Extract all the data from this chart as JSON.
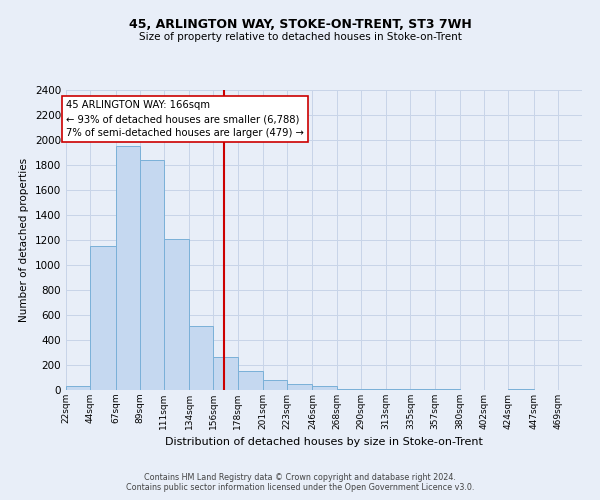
{
  "title1": "45, ARLINGTON WAY, STOKE-ON-TRENT, ST3 7WH",
  "title2": "Size of property relative to detached houses in Stoke-on-Trent",
  "xlabel": "Distribution of detached houses by size in Stoke-on-Trent",
  "ylabel": "Number of detached properties",
  "bar_labels": [
    "22sqm",
    "44sqm",
    "67sqm",
    "89sqm",
    "111sqm",
    "134sqm",
    "156sqm",
    "178sqm",
    "201sqm",
    "223sqm",
    "246sqm",
    "268sqm",
    "290sqm",
    "313sqm",
    "335sqm",
    "357sqm",
    "380sqm",
    "402sqm",
    "424sqm",
    "447sqm",
    "469sqm"
  ],
  "bar_values": [
    30,
    1150,
    1950,
    1840,
    1210,
    510,
    265,
    150,
    80,
    50,
    30,
    10,
    10,
    5,
    5,
    5,
    0,
    0,
    5,
    0,
    0
  ],
  "bin_edges": [
    22,
    44,
    67,
    89,
    111,
    134,
    156,
    178,
    201,
    223,
    246,
    268,
    290,
    313,
    335,
    357,
    380,
    402,
    424,
    447,
    469,
    491
  ],
  "bar_color": "#c5d8f0",
  "bar_edge_color": "#7ab0d8",
  "vline_x": 166,
  "vline_color": "#cc0000",
  "annotation_line1": "45 ARLINGTON WAY: 166sqm",
  "annotation_line2": "← 93% of detached houses are smaller (6,788)",
  "annotation_line3": "7% of semi-detached houses are larger (479) →",
  "annotation_bbox_color": "#ffffff",
  "annotation_bbox_edge": "#cc0000",
  "ylim": [
    0,
    2400
  ],
  "yticks": [
    0,
    200,
    400,
    600,
    800,
    1000,
    1200,
    1400,
    1600,
    1800,
    2000,
    2200,
    2400
  ],
  "grid_color": "#c8d4e8",
  "bg_color": "#e8eef8",
  "footer1": "Contains HM Land Registry data © Crown copyright and database right 2024.",
  "footer2": "Contains public sector information licensed under the Open Government Licence v3.0."
}
